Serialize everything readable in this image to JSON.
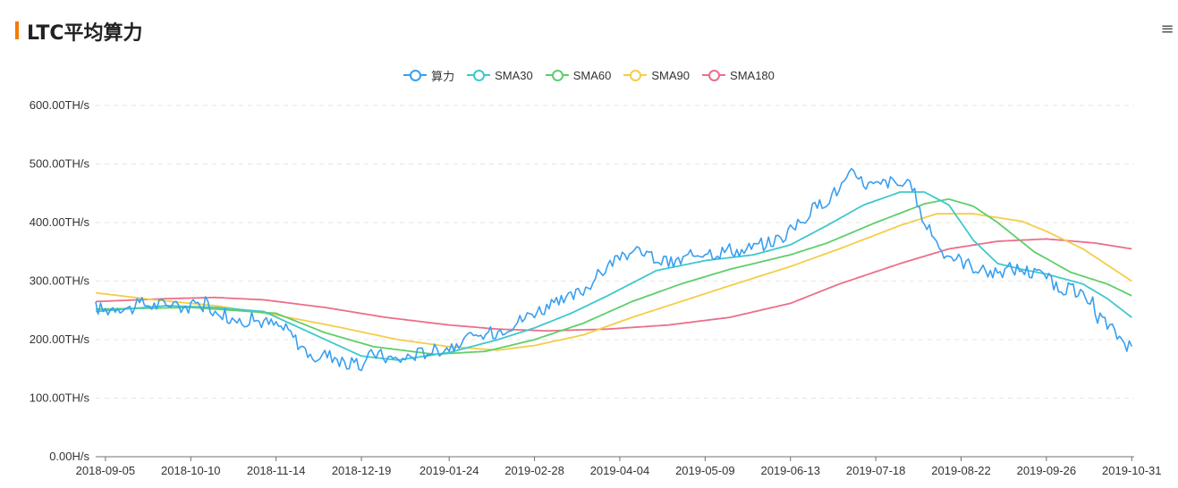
{
  "page": {
    "title": "LTC平均算力",
    "menu_icon": "menu-icon"
  },
  "colors": {
    "title_accent": "#f57c00"
  },
  "chart_data": {
    "type": "line",
    "title": "LTC平均算力",
    "xlabel": "",
    "ylabel": "",
    "ylim": [
      0,
      600
    ],
    "y_ticks": [
      "0.00H/s",
      "100.00TH/s",
      "200.00TH/s",
      "300.00TH/s",
      "400.00TH/s",
      "500.00TH/s",
      "600.00TH/s"
    ],
    "x_range": [
      "2018-09-01",
      "2019-11-01"
    ],
    "x_ticks": [
      "2018-09-05",
      "2018-10-10",
      "2018-11-14",
      "2018-12-19",
      "2019-01-24",
      "2019-02-28",
      "2019-04-04",
      "2019-05-09",
      "2019-06-13",
      "2019-07-18",
      "2019-08-22",
      "2019-09-26",
      "2019-10-31"
    ],
    "grid": true,
    "legend_position": "top-center",
    "series": [
      {
        "name": "算力",
        "color": "#3a9ff0",
        "points": [
          [
            "2018-09-01",
            255
          ],
          [
            "2018-09-05",
            250
          ],
          [
            "2018-09-10",
            258
          ],
          [
            "2018-09-15",
            252
          ],
          [
            "2018-09-20",
            262
          ],
          [
            "2018-09-25",
            258
          ],
          [
            "2018-09-30",
            262
          ],
          [
            "2018-10-05",
            258
          ],
          [
            "2018-10-10",
            255
          ],
          [
            "2018-10-15",
            265
          ],
          [
            "2018-10-20",
            250
          ],
          [
            "2018-10-25",
            240
          ],
          [
            "2018-10-30",
            232
          ],
          [
            "2018-11-04",
            235
          ],
          [
            "2018-11-09",
            230
          ],
          [
            "2018-11-14",
            225
          ],
          [
            "2018-11-19",
            215
          ],
          [
            "2018-11-24",
            190
          ],
          [
            "2018-11-29",
            170
          ],
          [
            "2018-12-04",
            175
          ],
          [
            "2018-12-09",
            170
          ],
          [
            "2018-12-14",
            158
          ],
          [
            "2018-12-19",
            155
          ],
          [
            "2018-12-24",
            178
          ],
          [
            "2018-12-29",
            170
          ],
          [
            "2019-01-03",
            165
          ],
          [
            "2019-01-08",
            172
          ],
          [
            "2019-01-13",
            178
          ],
          [
            "2019-01-18",
            182
          ],
          [
            "2019-01-24",
            188
          ],
          [
            "2019-01-29",
            198
          ],
          [
            "2019-02-03",
            202
          ],
          [
            "2019-02-08",
            208
          ],
          [
            "2019-02-13",
            215
          ],
          [
            "2019-02-18",
            225
          ],
          [
            "2019-02-23",
            235
          ],
          [
            "2019-02-28",
            248
          ],
          [
            "2019-03-05",
            255
          ],
          [
            "2019-03-10",
            262
          ],
          [
            "2019-03-15",
            272
          ],
          [
            "2019-03-20",
            285
          ],
          [
            "2019-03-25",
            305
          ],
          [
            "2019-03-30",
            325
          ],
          [
            "2019-04-04",
            342
          ],
          [
            "2019-04-09",
            350
          ],
          [
            "2019-04-14",
            348
          ],
          [
            "2019-04-19",
            338
          ],
          [
            "2019-04-24",
            330
          ],
          [
            "2019-04-29",
            335
          ],
          [
            "2019-05-04",
            345
          ],
          [
            "2019-05-09",
            352
          ],
          [
            "2019-05-14",
            348
          ],
          [
            "2019-05-19",
            355
          ],
          [
            "2019-05-24",
            350
          ],
          [
            "2019-05-29",
            360
          ],
          [
            "2019-06-03",
            365
          ],
          [
            "2019-06-08",
            372
          ],
          [
            "2019-06-13",
            385
          ],
          [
            "2019-06-18",
            405
          ],
          [
            "2019-06-23",
            425
          ],
          [
            "2019-06-28",
            440
          ],
          [
            "2019-07-03",
            458
          ],
          [
            "2019-07-08",
            482
          ],
          [
            "2019-07-13",
            468
          ],
          [
            "2019-07-18",
            462
          ],
          [
            "2019-07-23",
            470
          ],
          [
            "2019-07-28",
            465
          ],
          [
            "2019-08-02",
            460
          ],
          [
            "2019-08-07",
            395
          ],
          [
            "2019-08-12",
            368
          ],
          [
            "2019-08-17",
            345
          ],
          [
            "2019-08-22",
            335
          ],
          [
            "2019-08-27",
            325
          ],
          [
            "2019-09-01",
            318
          ],
          [
            "2019-09-06",
            312
          ],
          [
            "2019-09-11",
            322
          ],
          [
            "2019-09-16",
            320
          ],
          [
            "2019-09-21",
            314
          ],
          [
            "2019-09-26",
            305
          ],
          [
            "2019-10-01",
            290
          ],
          [
            "2019-10-06",
            285
          ],
          [
            "2019-10-11",
            275
          ],
          [
            "2019-10-16",
            250
          ],
          [
            "2019-10-21",
            225
          ],
          [
            "2019-10-26",
            205
          ],
          [
            "2019-10-31",
            182
          ]
        ]
      },
      {
        "name": "SMA30",
        "color": "#3ec8cc",
        "points": [
          [
            "2018-09-01",
            248
          ],
          [
            "2018-09-30",
            258
          ],
          [
            "2018-10-20",
            255
          ],
          [
            "2018-11-09",
            248
          ],
          [
            "2018-11-29",
            210
          ],
          [
            "2018-12-19",
            172
          ],
          [
            "2019-01-03",
            165
          ],
          [
            "2019-01-24",
            178
          ],
          [
            "2019-02-13",
            200
          ],
          [
            "2019-02-28",
            220
          ],
          [
            "2019-03-15",
            245
          ],
          [
            "2019-03-30",
            275
          ],
          [
            "2019-04-19",
            318
          ],
          [
            "2019-05-09",
            335
          ],
          [
            "2019-05-29",
            345
          ],
          [
            "2019-06-13",
            362
          ],
          [
            "2019-06-28",
            395
          ],
          [
            "2019-07-13",
            430
          ],
          [
            "2019-07-28",
            452
          ],
          [
            "2019-08-07",
            452
          ],
          [
            "2019-08-17",
            430
          ],
          [
            "2019-08-27",
            370
          ],
          [
            "2019-09-06",
            330
          ],
          [
            "2019-09-16",
            320
          ],
          [
            "2019-09-26",
            312
          ],
          [
            "2019-10-11",
            295
          ],
          [
            "2019-10-21",
            270
          ],
          [
            "2019-10-31",
            238
          ]
        ]
      },
      {
        "name": "SMA60",
        "color": "#5fce6a",
        "points": [
          [
            "2018-09-01",
            252
          ],
          [
            "2018-10-10",
            255
          ],
          [
            "2018-11-14",
            245
          ],
          [
            "2018-12-04",
            212
          ],
          [
            "2018-12-24",
            188
          ],
          [
            "2019-01-18",
            175
          ],
          [
            "2019-02-08",
            180
          ],
          [
            "2019-02-28",
            200
          ],
          [
            "2019-03-20",
            228
          ],
          [
            "2019-04-09",
            265
          ],
          [
            "2019-04-29",
            295
          ],
          [
            "2019-05-19",
            320
          ],
          [
            "2019-06-13",
            345
          ],
          [
            "2019-06-28",
            365
          ],
          [
            "2019-07-18",
            400
          ],
          [
            "2019-08-07",
            432
          ],
          [
            "2019-08-17",
            440
          ],
          [
            "2019-08-27",
            428
          ],
          [
            "2019-09-06",
            400
          ],
          [
            "2019-09-21",
            350
          ],
          [
            "2019-10-06",
            315
          ],
          [
            "2019-10-21",
            295
          ],
          [
            "2019-10-31",
            275
          ]
        ]
      },
      {
        "name": "SMA90",
        "color": "#f4cd47",
        "points": [
          [
            "2018-09-01",
            280
          ],
          [
            "2018-09-25",
            268
          ],
          [
            "2018-10-20",
            258
          ],
          [
            "2018-11-14",
            242
          ],
          [
            "2018-12-09",
            222
          ],
          [
            "2019-01-03",
            200
          ],
          [
            "2019-01-24",
            188
          ],
          [
            "2019-02-13",
            182
          ],
          [
            "2019-02-28",
            190
          ],
          [
            "2019-03-20",
            208
          ],
          [
            "2019-04-09",
            238
          ],
          [
            "2019-04-29",
            265
          ],
          [
            "2019-05-19",
            292
          ],
          [
            "2019-06-13",
            325
          ],
          [
            "2019-07-03",
            355
          ],
          [
            "2019-07-28",
            395
          ],
          [
            "2019-08-12",
            415
          ],
          [
            "2019-08-27",
            415
          ],
          [
            "2019-09-16",
            402
          ],
          [
            "2019-09-26",
            385
          ],
          [
            "2019-10-11",
            355
          ],
          [
            "2019-10-31",
            300
          ]
        ]
      },
      {
        "name": "SMA180",
        "color": "#ea6f8a",
        "points": [
          [
            "2018-09-01",
            265
          ],
          [
            "2018-09-30",
            270
          ],
          [
            "2018-10-20",
            272
          ],
          [
            "2018-11-09",
            268
          ],
          [
            "2018-12-04",
            255
          ],
          [
            "2018-12-29",
            238
          ],
          [
            "2019-01-24",
            225
          ],
          [
            "2019-02-13",
            218
          ],
          [
            "2019-03-05",
            215
          ],
          [
            "2019-03-30",
            218
          ],
          [
            "2019-04-24",
            225
          ],
          [
            "2019-05-19",
            238
          ],
          [
            "2019-06-13",
            262
          ],
          [
            "2019-07-03",
            295
          ],
          [
            "2019-07-28",
            330
          ],
          [
            "2019-08-17",
            355
          ],
          [
            "2019-09-06",
            368
          ],
          [
            "2019-09-26",
            372
          ],
          [
            "2019-10-16",
            365
          ],
          [
            "2019-10-31",
            355
          ]
        ]
      }
    ]
  }
}
